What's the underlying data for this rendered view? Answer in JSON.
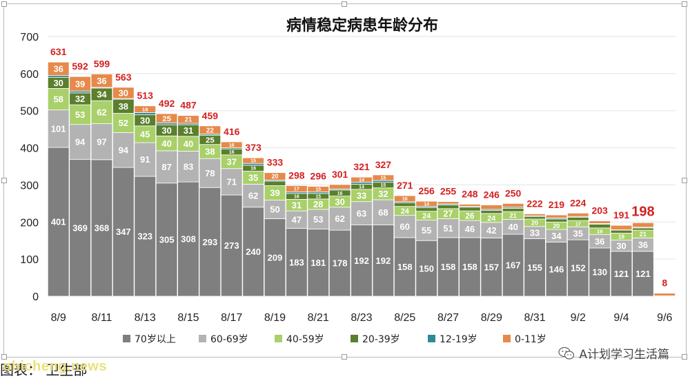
{
  "footer": {
    "watermark": "ohicheng.news",
    "source_label": "图表： 卫生部",
    "account_name": "A计划学习生活篇"
  },
  "chart_data": {
    "type": "bar",
    "stacked": true,
    "title": "病情稳定病患年龄分布",
    "xlabel": "",
    "ylabel": "",
    "ylim": [
      0,
      700
    ],
    "yticks": [
      0,
      100,
      200,
      300,
      400,
      500,
      600,
      700
    ],
    "grid": true,
    "legend_position": "bottom",
    "x_tick_labels": [
      "8/9",
      "8/11",
      "8/13",
      "8/15",
      "8/17",
      "8/19",
      "8/21",
      "8/23",
      "8/25",
      "8/27",
      "8/29",
      "8/31",
      "9/2",
      "9/4",
      "9/6"
    ],
    "categories": [
      "8/9",
      "8/10",
      "8/11",
      "8/12",
      "8/13",
      "8/14",
      "8/15",
      "8/16",
      "8/17",
      "8/18",
      "8/19",
      "8/20",
      "8/21",
      "8/22",
      "8/23",
      "8/24",
      "8/25",
      "8/26",
      "8/27",
      "8/28",
      "8/29",
      "8/30",
      "8/31",
      "9/1",
      "9/2",
      "9/3",
      "9/4",
      "9/5",
      "9/6"
    ],
    "series": [
      {
        "name": "70岁以上",
        "color": "#7f7f7f",
        "values": [
          401,
          369,
          368,
          347,
          323,
          305,
          308,
          293,
          273,
          240,
          209,
          183,
          181,
          178,
          192,
          192,
          158,
          150,
          158,
          158,
          157,
          167,
          155,
          146,
          152,
          130,
          121,
          121,
          0
        ]
      },
      {
        "name": "60-69岁",
        "color": "#b3b3b3",
        "values": [
          101,
          94,
          97,
          94,
          91,
          87,
          83,
          78,
          71,
          62,
          50,
          47,
          53,
          62,
          63,
          68,
          60,
          55,
          51,
          46,
          42,
          40,
          33,
          34,
          35,
          36,
          30,
          36,
          0
        ]
      },
      {
        "name": "40-59岁",
        "color": "#a9d06a",
        "values": [
          58,
          53,
          62,
          52,
          45,
          40,
          40,
          38,
          37,
          35,
          39,
          31,
          28,
          30,
          33,
          32,
          24,
          24,
          27,
          26,
          24,
          21,
          20,
          20,
          17,
          18,
          19,
          21,
          0
        ]
      },
      {
        "name": "20-39岁",
        "color": "#5b7f2d",
        "values": [
          30,
          32,
          34,
          38,
          30,
          30,
          31,
          25,
          16,
          16,
          12,
          16,
          15,
          16,
          14,
          15,
          10,
          10,
          10,
          10,
          8,
          9,
          7,
          8,
          9,
          10,
          8,
          6,
          0
        ]
      },
      {
        "name": "12-19岁",
        "color": "#2e8a99",
        "values": [
          5,
          5,
          2,
          2,
          6,
          5,
          4,
          3,
          3,
          5,
          3,
          4,
          4,
          3,
          5,
          5,
          3,
          3,
          3,
          2,
          3,
          3,
          2,
          3,
          2,
          2,
          1,
          2,
          1
        ]
      },
      {
        "name": "0-11岁",
        "color": "#e6894a",
        "values": [
          36,
          39,
          36,
          30,
          18,
          25,
          21,
          22,
          16,
          15,
          20,
          17,
          15,
          12,
          14,
          15,
          16,
          14,
          6,
          6,
          12,
          10,
          5,
          8,
          9,
          7,
          12,
          12,
          7
        ]
      }
    ],
    "totals": [
      631,
      592,
      599,
      563,
      513,
      492,
      487,
      459,
      416,
      373,
      333,
      298,
      296,
      301,
      321,
      327,
      271,
      256,
      255,
      248,
      246,
      250,
      222,
      219,
      224,
      203,
      191,
      198,
      8
    ],
    "highlighted_total_index": 27
  }
}
